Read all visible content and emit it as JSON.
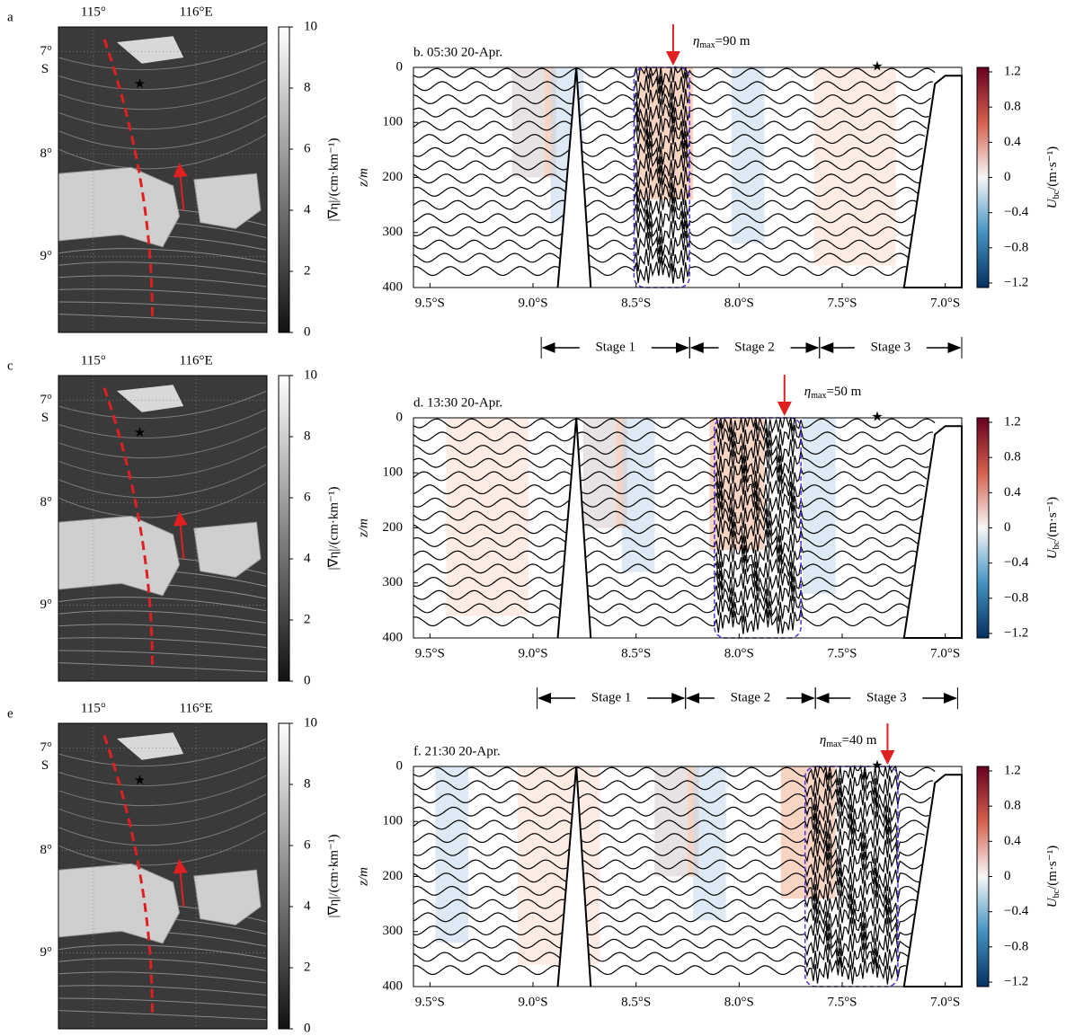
{
  "chart_data": [
    {
      "type": "map",
      "label": "a",
      "xlim": [
        114.66,
        116.69
      ],
      "ylim": [
        6.76,
        9.74
      ],
      "xticks": [
        {
          "value": 115,
          "label": "115°"
        },
        {
          "value": 116,
          "label": "116°E"
        }
      ],
      "yticks": [
        {
          "value": 7,
          "label": "7°"
        },
        {
          "value": 8,
          "label": "8°"
        },
        {
          "value": 9,
          "label": "9°"
        }
      ],
      "hemisphere": "S",
      "colorbar": {
        "label": "|∇η|/(cm·km⁻¹)",
        "lim": [
          0,
          10
        ],
        "ticks": [
          0,
          2,
          4,
          6,
          8,
          10
        ]
      }
    },
    {
      "type": "section",
      "title": "b. 05:30 20-Apr.",
      "annotation": {
        "symbol": "η",
        "sub": "max",
        "text": "=90 m",
        "lat": 8.32
      },
      "box": [
        8.51,
        8.24
      ],
      "star": 7.33,
      "xlim": [
        9.58,
        6.92
      ],
      "ylim": [
        0,
        400
      ],
      "xticks": [
        {
          "value": 9.5,
          "label": "9.5°S"
        },
        {
          "value": 9.0,
          "label": "9.0°S"
        },
        {
          "value": 8.5,
          "label": "8.5°S"
        },
        {
          "value": 8.0,
          "label": "8.0°S"
        },
        {
          "value": 7.5,
          "label": "7.5°S"
        },
        {
          "value": 7.0,
          "label": "7.0°S"
        }
      ],
      "yticks": [
        0,
        100,
        200,
        300,
        400
      ],
      "ylabel": "z/m",
      "colorbar": {
        "symbol": "U",
        "sub": "bc",
        "unit": "/(m·s⁻¹)",
        "lim": [
          -1.2,
          1.2
        ],
        "ticks": [
          {
            "value": -1.2,
            "label": "−1.2"
          },
          {
            "value": -0.8,
            "label": "−0.8"
          },
          {
            "value": -0.4,
            "label": "−0.4"
          },
          0,
          0.4,
          0.8,
          1.2
        ]
      },
      "stages": [
        {
          "label": "Stage 1",
          "from": 8.96,
          "to": 8.24
        },
        {
          "label": "Stage 2",
          "from": 8.24,
          "to": 7.61
        },
        {
          "label": "Stage 3",
          "from": 7.61,
          "to": 6.92
        }
      ]
    },
    {
      "type": "map",
      "label": "c",
      "xlim": [
        114.66,
        116.69
      ],
      "ylim": [
        6.76,
        9.74
      ],
      "xticks": [
        {
          "value": 115,
          "label": "115°"
        },
        {
          "value": 116,
          "label": "116°E"
        }
      ],
      "yticks": [
        {
          "value": 7,
          "label": "7°"
        },
        {
          "value": 8,
          "label": "8°"
        },
        {
          "value": 9,
          "label": "9°"
        }
      ],
      "hemisphere": "S",
      "colorbar": {
        "label": "|∇η|/(cm·km⁻¹)",
        "lim": [
          0,
          10
        ],
        "ticks": [
          0,
          2,
          4,
          6,
          8,
          10
        ]
      }
    },
    {
      "type": "section",
      "title": "d. 13:30 20-Apr.",
      "annotation": {
        "symbol": "η",
        "sub": "max",
        "text": "=50 m",
        "lat": 7.78
      },
      "box": [
        8.12,
        7.7
      ],
      "star": 7.33,
      "xlim": [
        9.58,
        6.92
      ],
      "ylim": [
        0,
        400
      ],
      "xticks": [
        {
          "value": 9.5,
          "label": "9.5°S"
        },
        {
          "value": 9.0,
          "label": "9.0°S"
        },
        {
          "value": 8.5,
          "label": "8.5°S"
        },
        {
          "value": 8.0,
          "label": "8.0°S"
        },
        {
          "value": 7.5,
          "label": "7.5°S"
        },
        {
          "value": 7.0,
          "label": "7.0°S"
        }
      ],
      "yticks": [
        0,
        100,
        200,
        300,
        400
      ],
      "ylabel": "z/m",
      "colorbar": {
        "symbol": "U",
        "sub": "bc",
        "unit": "/(m·s⁻¹)",
        "lim": [
          -1.2,
          1.2
        ],
        "ticks": [
          {
            "value": -1.2,
            "label": "−1.2"
          },
          {
            "value": -0.8,
            "label": "−0.8"
          },
          {
            "value": -0.4,
            "label": "−0.4"
          },
          0,
          0.4,
          0.8,
          1.2
        ]
      },
      "stages": [
        {
          "label": "Stage 1",
          "from": 8.98,
          "to": 8.26
        },
        {
          "label": "Stage 2",
          "from": 8.26,
          "to": 7.63
        },
        {
          "label": "Stage 3",
          "from": 7.63,
          "to": 6.94
        }
      ]
    },
    {
      "type": "map",
      "label": "e",
      "xlim": [
        114.66,
        116.69
      ],
      "ylim": [
        6.76,
        9.74
      ],
      "xticks": [
        {
          "value": 115,
          "label": "115°"
        },
        {
          "value": 116,
          "label": "116°E"
        }
      ],
      "yticks": [
        {
          "value": 7,
          "label": "7°"
        },
        {
          "value": 8,
          "label": "8°"
        },
        {
          "value": 9,
          "label": "9°"
        }
      ],
      "hemisphere": "S",
      "colorbar": {
        "label": "|∇η|/(cm·km⁻¹)",
        "lim": [
          0,
          10
        ],
        "ticks": [
          0,
          2,
          4,
          6,
          8,
          10
        ]
      }
    },
    {
      "type": "section",
      "title": "f. 21:30 20-Apr.",
      "annotation": {
        "symbol": "η",
        "sub": "max",
        "text": "=40 m",
        "lat": 7.28
      },
      "box": [
        7.68,
        7.23
      ],
      "star": 7.33,
      "xlim": [
        9.58,
        6.92
      ],
      "ylim": [
        0,
        400
      ],
      "xticks": [
        {
          "value": 9.5,
          "label": "9.5°S"
        },
        {
          "value": 9.0,
          "label": "9.0°S"
        },
        {
          "value": 8.5,
          "label": "8.5°S"
        },
        {
          "value": 8.0,
          "label": "8.0°S"
        },
        {
          "value": 7.5,
          "label": "7.5°S"
        },
        {
          "value": 7.0,
          "label": "7.0°S"
        }
      ],
      "yticks": [
        0,
        100,
        200,
        300,
        400
      ],
      "ylabel": "z/m",
      "colorbar": {
        "symbol": "U",
        "sub": "bc",
        "unit": "/(m·s⁻¹)",
        "lim": [
          -1.2,
          1.2
        ],
        "ticks": [
          {
            "value": -1.2,
            "label": "−1.2"
          },
          {
            "value": -0.8,
            "label": "−0.8"
          },
          {
            "value": -0.4,
            "label": "−0.4"
          },
          0,
          0.4,
          0.8,
          1.2
        ]
      }
    }
  ]
}
